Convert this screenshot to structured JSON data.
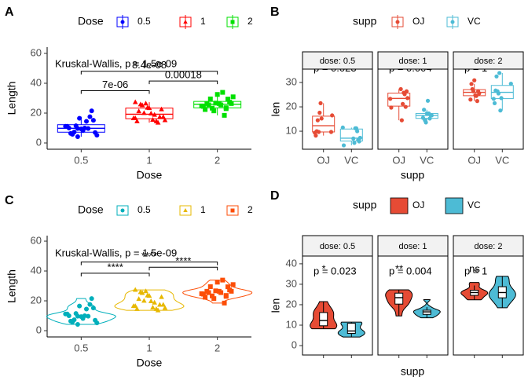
{
  "chart_data": [
    {
      "type": "box",
      "label": "A",
      "legend_title": "Dose",
      "xlabel": "Dose",
      "ylabel": "Length",
      "categories": [
        "0.5",
        "1",
        "2"
      ],
      "series": [
        {
          "name": "0.5",
          "color": "#0000FF",
          "shape": "circle",
          "values": [
            4.2,
            11.5,
            7.3,
            5.8,
            6.4,
            10,
            11.2,
            11.2,
            5.2,
            7,
            15.2,
            21.5,
            17.6,
            9.7,
            14.5,
            10,
            8.2,
            9.4,
            16.5,
            9.7
          ],
          "box": [
            4.2,
            7.225,
            9.85,
            12.25,
            17.6
          ]
        },
        {
          "name": "1",
          "color": "#FF0000",
          "shape": "triangle",
          "values": [
            16.5,
            16.5,
            15.2,
            17.3,
            22.5,
            17.3,
            13.6,
            14.5,
            18.8,
            15.5,
            19.7,
            23.3,
            23.6,
            26.4,
            20,
            25.2,
            25.8,
            21.2,
            14.5,
            27.3
          ],
          "box": [
            13.6,
            16.25,
            19.25,
            23.375,
            27.3
          ]
        },
        {
          "name": "2",
          "color": "#00E000",
          "shape": "square",
          "values": [
            23.6,
            18.5,
            33.9,
            25.5,
            26.4,
            32.5,
            26.7,
            21.5,
            23.3,
            29.5,
            25.5,
            26.4,
            22.4,
            24.5,
            24.8,
            30.9,
            26.4,
            27.3,
            29.4,
            23
          ],
          "box": [
            18.5,
            23.525,
            25.95,
            27.825,
            33.9
          ]
        }
      ],
      "ylim": [
        -4.2,
        64.2
      ],
      "yticks": [
        0,
        20,
        40,
        60
      ],
      "test_label": {
        "text": "Kruskal-Wallis, p = 1.5e-09",
        "y": 52.6
      },
      "comparisons": [
        {
          "from": "0.5",
          "to": "1",
          "label": "7e-06",
          "y": 35
        },
        {
          "from": "1",
          "to": "2",
          "label": "0.00018",
          "y": 41.5
        },
        {
          "from": "0.5",
          "to": "2",
          "label": "8.4e-08",
          "y": 48
        }
      ]
    },
    {
      "type": "facet_box",
      "label": "B",
      "legend_title": "supp",
      "xlabel": "supp",
      "ylabel": "len",
      "categories": [
        "OJ",
        "VC"
      ],
      "series": [
        {
          "name": "OJ",
          "color": "#E64B35"
        },
        {
          "name": "VC",
          "color": "#4DBBD5"
        }
      ],
      "ylim": [
        2.6,
        35.5
      ],
      "yticks": [
        10,
        20,
        30
      ],
      "facets": [
        {
          "label": "dose: 0.5",
          "p_label": "p = 0.023",
          "p_y": 35.6,
          "values": [
            [
              15.2,
              21.5,
              17.6,
              9.7,
              14.5,
              10,
              8.2,
              9.4,
              16.5,
              9.7
            ],
            [
              4.2,
              11.5,
              7.3,
              5.8,
              6.4,
              10,
              11.2,
              11.2,
              5.2,
              7
            ]
          ],
          "boxes": [
            [
              8.2,
              9.7,
              12.25,
              16.175,
              21.5
            ],
            [
              4.2,
              5.95,
              7.15,
              10.9,
              11.5
            ]
          ]
        },
        {
          "label": "dose: 1",
          "p_label": "p = 0.004",
          "p_y": 35.6,
          "values": [
            [
              19.7,
              23.3,
              23.6,
              26.4,
              20,
              25.2,
              25.8,
              21.2,
              14.5,
              27.3
            ],
            [
              16.5,
              16.5,
              15.2,
              17.3,
              22.5,
              17.3,
              13.6,
              14.5,
              18.8,
              15.5
            ]
          ],
          "boxes": [
            [
              14.5,
              20.3,
              23.45,
              25.65,
              27.3
            ],
            [
              13.6,
              15.275,
              16.5,
              17.3,
              18.8
            ]
          ]
        },
        {
          "label": "dose: 2",
          "p_label": "p = 1",
          "p_y": 35.6,
          "values": [
            [
              25.5,
              26.4,
              22.4,
              24.5,
              24.8,
              30.9,
              26.4,
              27.3,
              29.4,
              23
            ],
            [
              23.6,
              18.5,
              33.9,
              25.5,
              26.4,
              32.5,
              26.7,
              21.5,
              23.3,
              29.5
            ]
          ],
          "boxes": [
            [
              22.4,
              24.575,
              25.95,
              27.075,
              29.4
            ],
            [
              18.5,
              23.375,
              25.95,
              28.8,
              33.9
            ]
          ]
        }
      ]
    },
    {
      "type": "violin",
      "label": "C",
      "legend_title": "Dose",
      "xlabel": "Dose",
      "ylabel": "Length",
      "categories": [
        "0.5",
        "1",
        "2"
      ],
      "series": [
        {
          "name": "0.5",
          "color": "#00AFBB",
          "shape": "circle",
          "values": [
            4.2,
            11.5,
            7.3,
            5.8,
            6.4,
            10,
            11.2,
            11.2,
            5.2,
            7,
            15.2,
            21.5,
            17.6,
            9.7,
            14.5,
            10,
            8.2,
            9.4,
            16.5,
            9.7
          ]
        },
        {
          "name": "1",
          "color": "#E7B800",
          "shape": "triangle",
          "values": [
            16.5,
            16.5,
            15.2,
            17.3,
            22.5,
            17.3,
            13.6,
            14.5,
            18.8,
            15.5,
            19.7,
            23.3,
            23.6,
            26.4,
            20,
            25.2,
            25.8,
            21.2,
            14.5,
            27.3
          ]
        },
        {
          "name": "2",
          "color": "#FC4E07",
          "shape": "square",
          "values": [
            23.6,
            18.5,
            33.9,
            25.5,
            26.4,
            32.5,
            26.7,
            21.5,
            23.3,
            29.5,
            25.5,
            26.4,
            22.4,
            24.5,
            24.8,
            30.9,
            26.4,
            27.3,
            29.4,
            23
          ]
        }
      ],
      "ylim": [
        -4.2,
        63.7
      ],
      "yticks": [
        0,
        20,
        40,
        60
      ],
      "test_label": {
        "text": "Kruskal-Wallis, p = 1.5e-09",
        "y": 51.5
      },
      "comparisons": [
        {
          "from": "0.5",
          "to": "1",
          "label": "****",
          "y": 38.5
        },
        {
          "from": "1",
          "to": "2",
          "label": "****",
          "y": 42.5
        },
        {
          "from": "0.5",
          "to": "2",
          "label": "****",
          "y": 46
        }
      ]
    },
    {
      "type": "facet_violin",
      "label": "D",
      "legend_title": "supp",
      "xlabel": "supp",
      "ylabel": "len",
      "series": [
        {
          "name": "OJ",
          "color": "#E64B35"
        },
        {
          "name": "VC",
          "color": "#4DBBD5"
        }
      ],
      "ylim": [
        -4.6,
        43.8
      ],
      "yticks": [
        0,
        10,
        20,
        30,
        40
      ],
      "facets": [
        {
          "label": "dose: 0.5",
          "p_label": "p = 0.023",
          "p_y": 36,
          "signif": "*",
          "signif_y": 36.5,
          "values": [
            [
              15.2,
              21.5,
              17.6,
              9.7,
              14.5,
              10,
              8.2,
              9.4,
              16.5,
              9.7
            ],
            [
              4.2,
              11.5,
              7.3,
              5.8,
              6.4,
              10,
              11.2,
              11.2,
              5.2,
              7
            ]
          ],
          "boxes": [
            [
              8.2,
              9.7,
              12.25,
              16.175,
              21.5
            ],
            [
              4.2,
              5.95,
              7.15,
              10.9,
              11.5
            ]
          ]
        },
        {
          "label": "dose: 1",
          "p_label": "p = 0.004",
          "p_y": 36,
          "signif": "**",
          "signif_y": 36.5,
          "values": [
            [
              19.7,
              23.3,
              23.6,
              26.4,
              20,
              25.2,
              25.8,
              21.2,
              14.5,
              27.3
            ],
            [
              16.5,
              16.5,
              15.2,
              17.3,
              22.5,
              17.3,
              13.6,
              14.5,
              18.8,
              15.5
            ]
          ],
          "boxes": [
            [
              14.5,
              20.3,
              23.45,
              25.65,
              27.3
            ],
            [
              13.6,
              15.275,
              16.5,
              17.3,
              18.8
            ]
          ]
        },
        {
          "label": "dose: 2",
          "p_label": "p = 1",
          "p_y": 36,
          "signif": "ns",
          "signif_y": 36.5,
          "values": [
            [
              25.5,
              26.4,
              22.4,
              24.5,
              24.8,
              30.9,
              26.4,
              27.3,
              29.4,
              23
            ],
            [
              23.6,
              18.5,
              33.9,
              25.5,
              26.4,
              32.5,
              26.7,
              21.5,
              23.3,
              29.5
            ]
          ],
          "boxes": [
            [
              22.4,
              24.575,
              25.95,
              27.075,
              29.4
            ],
            [
              18.5,
              23.375,
              25.95,
              28.8,
              33.9
            ]
          ]
        }
      ]
    }
  ]
}
